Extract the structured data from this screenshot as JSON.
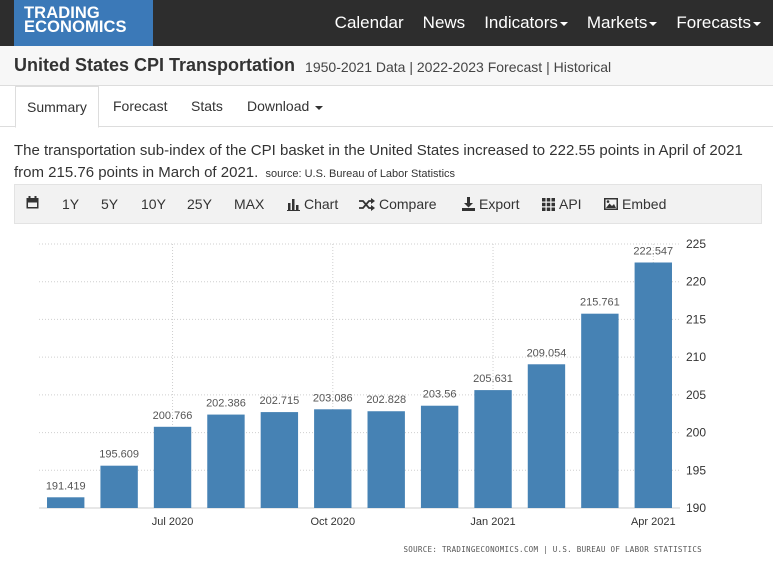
{
  "header": {
    "logo_line1": "TRADING",
    "logo_line2": "ECONOMICS",
    "nav": [
      {
        "label": "Calendar",
        "has_menu": false
      },
      {
        "label": "News",
        "has_menu": false
      },
      {
        "label": "Indicators",
        "has_menu": true
      },
      {
        "label": "Markets",
        "has_menu": true
      },
      {
        "label": "Forecasts",
        "has_menu": true
      }
    ]
  },
  "page": {
    "title": "United States CPI Transportation",
    "subtitle": "1950-2021 Data | 2022-2023 Forecast | Historical"
  },
  "tabs": [
    {
      "label": "Summary",
      "active": true
    },
    {
      "label": "Forecast"
    },
    {
      "label": "Stats"
    },
    {
      "label": "Download",
      "has_menu": true
    }
  ],
  "description": {
    "text": "The transportation sub-index of the CPI basket in the United States increased to 222.55 points in April of 2021 from 215.76 points in March of 2021.",
    "source": "source: U.S. Bureau of Labor Statistics"
  },
  "toolbar": {
    "ranges": [
      "1Y",
      "5Y",
      "10Y",
      "25Y",
      "MAX"
    ],
    "chart_label": "Chart",
    "compare_label": "Compare",
    "export_label": "Export",
    "api_label": "API",
    "embed_label": "Embed",
    "icons": [
      "calendar-icon",
      "bar-chart-icon",
      "shuffle-icon",
      "download-icon",
      "grid-icon",
      "image-icon"
    ]
  },
  "chart_data": {
    "type": "bar",
    "categories": [
      "May 2020",
      "Jun 2020",
      "Jul 2020",
      "Aug 2020",
      "Sep 2020",
      "Oct 2020",
      "Nov 2020",
      "Dec 2020",
      "Jan 2021",
      "Feb 2021",
      "Mar 2021",
      "Apr 2021"
    ],
    "values": [
      191.419,
      195.609,
      200.766,
      202.386,
      202.715,
      203.086,
      202.828,
      203.56,
      205.631,
      209.054,
      215.761,
      222.547
    ],
    "data_labels": [
      "191.419",
      "195.609",
      "200.766",
      "202.386",
      "202.715",
      "203.086",
      "202.828",
      "203.56",
      "205.631",
      "209.054",
      "215.761",
      "222.547"
    ],
    "x_ticks": [
      {
        "index": 2,
        "label": "Jul 2020"
      },
      {
        "index": 5,
        "label": "Oct 2020"
      },
      {
        "index": 8,
        "label": "Jan 2021"
      },
      {
        "index": 11,
        "label": "Apr 2021"
      }
    ],
    "y_ticks": [
      190,
      195,
      200,
      205,
      210,
      215,
      220,
      225
    ],
    "ylim": [
      190,
      225
    ],
    "y_axis_side": "right",
    "grid": true,
    "bar_color": "#4682b4",
    "title": "",
    "xlabel": "",
    "ylabel": "",
    "source_text": "SOURCE: TRADINGECONOMICS.COM | U.S. BUREAU OF LABOR STATISTICS"
  }
}
